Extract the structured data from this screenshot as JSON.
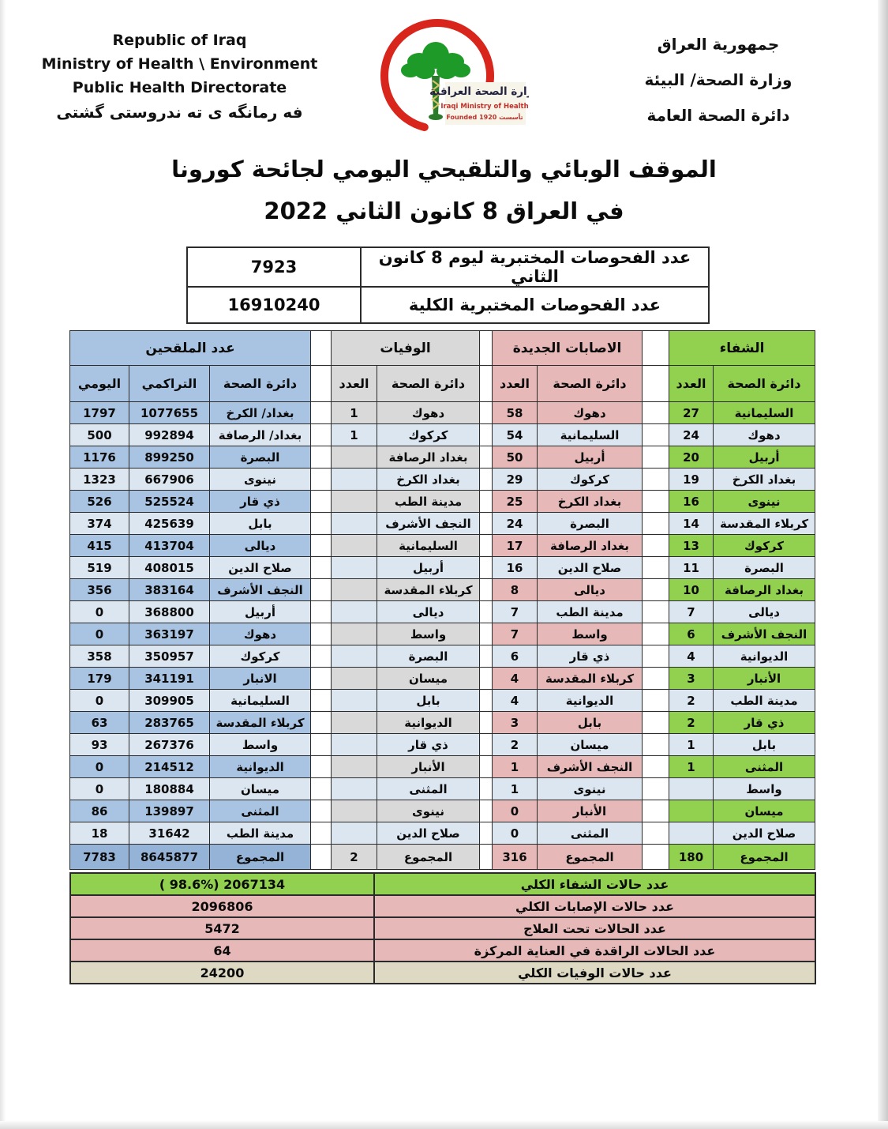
{
  "header": {
    "left": {
      "line1": "Republic of Iraq",
      "line2": "Ministry of Health \\ Environment",
      "line3": "Public Health Directorate",
      "line4": "فه رمانگه ی ته ندروستی گشتی"
    },
    "right": {
      "line1": "جمهورية العراق",
      "line2": "وزارة الصحة/ البيئة",
      "line3": "دائرة الصحة العامة"
    },
    "logo": {
      "arabic": "وزارة الصحة العراقية",
      "english": "Iraqi Ministry of Health",
      "founded": "Founded 1920  تأسست"
    }
  },
  "title": {
    "line1": "الموقف الوبائي والتلقيحي اليومي لجائحة كورونا",
    "line2": "في العراق  8  كانون الثاني 2022"
  },
  "tests_table": {
    "daily_label": "عدد الفحوصات المختبرية  ليوم 8  كانون الثاني",
    "daily_value": "7923",
    "total_label": "عدد الفحوصات المختبرية الكلية",
    "total_value": "16910240"
  },
  "main_table": {
    "sections": {
      "vaccinated": {
        "title": "عدد الملقحين",
        "col_daily": "اليومي",
        "col_cumulative": "التراكمي",
        "col_directorate": "دائرة الصحة"
      },
      "deaths": {
        "title": "الوفيات",
        "col_count": "العدد",
        "col_directorate": "دائرة الصحة"
      },
      "new_cases": {
        "title": "الاصابات الجديدة",
        "col_count": "العدد",
        "col_directorate": "دائرة الصحة"
      },
      "recovered": {
        "title": "الشفاء",
        "col_count": "العدد",
        "col_directorate": "دائرة الصحة"
      }
    },
    "rows": [
      {
        "vacc_daily": "1797",
        "vacc_total": "1077655",
        "vacc_dir": "بغداد/ الكرخ",
        "death_num": "1",
        "death_dir": "دهوك",
        "new_num": "58",
        "new_dir": "دهوك",
        "rec_num": "27",
        "rec_dir": "السليمانية"
      },
      {
        "vacc_daily": "500",
        "vacc_total": "992894",
        "vacc_dir": "بغداد/ الرصافة",
        "death_num": "1",
        "death_dir": "كركوك",
        "new_num": "54",
        "new_dir": "السليمانية",
        "rec_num": "24",
        "rec_dir": "دهوك"
      },
      {
        "vacc_daily": "1176",
        "vacc_total": "899250",
        "vacc_dir": "البصرة",
        "death_num": "",
        "death_dir": "بغداد الرصافة",
        "new_num": "50",
        "new_dir": "أربيل",
        "rec_num": "20",
        "rec_dir": "أربيل"
      },
      {
        "vacc_daily": "1323",
        "vacc_total": "667906",
        "vacc_dir": "نينوى",
        "death_num": "",
        "death_dir": "بغداد الكرخ",
        "new_num": "29",
        "new_dir": "كركوك",
        "rec_num": "19",
        "rec_dir": "بغداد الكرخ"
      },
      {
        "vacc_daily": "526",
        "vacc_total": "525524",
        "vacc_dir": "ذي قار",
        "death_num": "",
        "death_dir": "مدينة الطب",
        "new_num": "25",
        "new_dir": "بغداد الكرخ",
        "rec_num": "16",
        "rec_dir": "نينوى"
      },
      {
        "vacc_daily": "374",
        "vacc_total": "425639",
        "vacc_dir": "بابل",
        "death_num": "",
        "death_dir": "النجف الأشرف",
        "new_num": "24",
        "new_dir": "البصرة",
        "rec_num": "14",
        "rec_dir": "كربلاء المقدسة"
      },
      {
        "vacc_daily": "415",
        "vacc_total": "413704",
        "vacc_dir": "ديالى",
        "death_num": "",
        "death_dir": "السليمانية",
        "new_num": "17",
        "new_dir": "بغداد الرصافة",
        "rec_num": "13",
        "rec_dir": "كركوك"
      },
      {
        "vacc_daily": "519",
        "vacc_total": "408015",
        "vacc_dir": "صلاح الدين",
        "death_num": "",
        "death_dir": "أربيل",
        "new_num": "16",
        "new_dir": "صلاح الدين",
        "rec_num": "11",
        "rec_dir": "البصرة"
      },
      {
        "vacc_daily": "356",
        "vacc_total": "383164",
        "vacc_dir": "النجف الأشرف",
        "death_num": "",
        "death_dir": "كربلاء المقدسة",
        "new_num": "8",
        "new_dir": "ديالى",
        "rec_num": "10",
        "rec_dir": "بغداد الرصافة"
      },
      {
        "vacc_daily": "0",
        "vacc_total": "368800",
        "vacc_dir": "أربيل",
        "death_num": "",
        "death_dir": "ديالى",
        "new_num": "7",
        "new_dir": "مدينة الطب",
        "rec_num": "7",
        "rec_dir": "ديالى"
      },
      {
        "vacc_daily": "0",
        "vacc_total": "363197",
        "vacc_dir": "دهوك",
        "death_num": "",
        "death_dir": "واسط",
        "new_num": "7",
        "new_dir": "واسط",
        "rec_num": "6",
        "rec_dir": "النجف الأشرف"
      },
      {
        "vacc_daily": "358",
        "vacc_total": "350957",
        "vacc_dir": "كركوك",
        "death_num": "",
        "death_dir": "البصرة",
        "new_num": "6",
        "new_dir": "ذي قار",
        "rec_num": "4",
        "rec_dir": "الديوانية"
      },
      {
        "vacc_daily": "179",
        "vacc_total": "341191",
        "vacc_dir": "الانبار",
        "death_num": "",
        "death_dir": "ميسان",
        "new_num": "4",
        "new_dir": "كربلاء المقدسة",
        "rec_num": "3",
        "rec_dir": "الأنبار"
      },
      {
        "vacc_daily": "0",
        "vacc_total": "309905",
        "vacc_dir": "السليمانية",
        "death_num": "",
        "death_dir": "بابل",
        "new_num": "4",
        "new_dir": "الديوانية",
        "rec_num": "2",
        "rec_dir": "مدينة الطب"
      },
      {
        "vacc_daily": "63",
        "vacc_total": "283765",
        "vacc_dir": "كربلاء المقدسة",
        "death_num": "",
        "death_dir": "الديوانية",
        "new_num": "3",
        "new_dir": "بابل",
        "rec_num": "2",
        "rec_dir": "ذي قار"
      },
      {
        "vacc_daily": "93",
        "vacc_total": "267376",
        "vacc_dir": "واسط",
        "death_num": "",
        "death_dir": "ذي قار",
        "new_num": "2",
        "new_dir": "ميسان",
        "rec_num": "1",
        "rec_dir": "بابل"
      },
      {
        "vacc_daily": "0",
        "vacc_total": "214512",
        "vacc_dir": "الديوانية",
        "death_num": "",
        "death_dir": "الأنبار",
        "new_num": "1",
        "new_dir": "النجف الأشرف",
        "rec_num": "1",
        "rec_dir": "المثنى"
      },
      {
        "vacc_daily": "0",
        "vacc_total": "180884",
        "vacc_dir": "ميسان",
        "death_num": "",
        "death_dir": "المثنى",
        "new_num": "1",
        "new_dir": "نينوى",
        "rec_num": "",
        "rec_dir": "واسط"
      },
      {
        "vacc_daily": "86",
        "vacc_total": "139897",
        "vacc_dir": "المثنى",
        "death_num": "",
        "death_dir": "نينوى",
        "new_num": "0",
        "new_dir": "الأنبار",
        "rec_num": "",
        "rec_dir": "ميسان"
      },
      {
        "vacc_daily": "18",
        "vacc_total": "31642",
        "vacc_dir": "مدينة الطب",
        "death_num": "",
        "death_dir": "صلاح الدين",
        "new_num": "0",
        "new_dir": "المثنى",
        "rec_num": "",
        "rec_dir": "صلاح الدين"
      }
    ],
    "total_row": {
      "vacc_daily": "7783",
      "vacc_total": "8645877",
      "vacc_dir": "المجموع",
      "death_num": "2",
      "death_dir": "المجموع",
      "new_num": "316",
      "new_dir": "المجموع",
      "rec_num": "180",
      "rec_dir": "المجموع"
    }
  },
  "summary_table": {
    "rows": [
      {
        "label": "عدد حالات الشفاء الكلي",
        "value": "( 98.6%)  2067134",
        "color": "green"
      },
      {
        "label": "عدد حالات الإصابات الكلي",
        "value": "2096806",
        "color": "pink"
      },
      {
        "label": "عدد الحالات تحت العلاج",
        "value": "5472",
        "color": "pink"
      },
      {
        "label": "عدد الحالات الراقدة في العناية المركزة",
        "value": "64",
        "color": "pink"
      },
      {
        "label": "عدد حالات الوفيات الكلي",
        "value": "24200",
        "color": "tan"
      }
    ]
  },
  "colors": {
    "section_green": "#92D050",
    "section_pink": "#E6B9B8",
    "section_gray": "#D9D9D9",
    "section_blue_header": "#A9C4E2",
    "section_blue_total": "#95B3D7",
    "row_stripe": "#DCE6F1",
    "summary_tan": "#DDD9C3",
    "logo_red": "#D9261C",
    "logo_green": "#1E9A28",
    "border_dark": "#2B2B2B"
  }
}
